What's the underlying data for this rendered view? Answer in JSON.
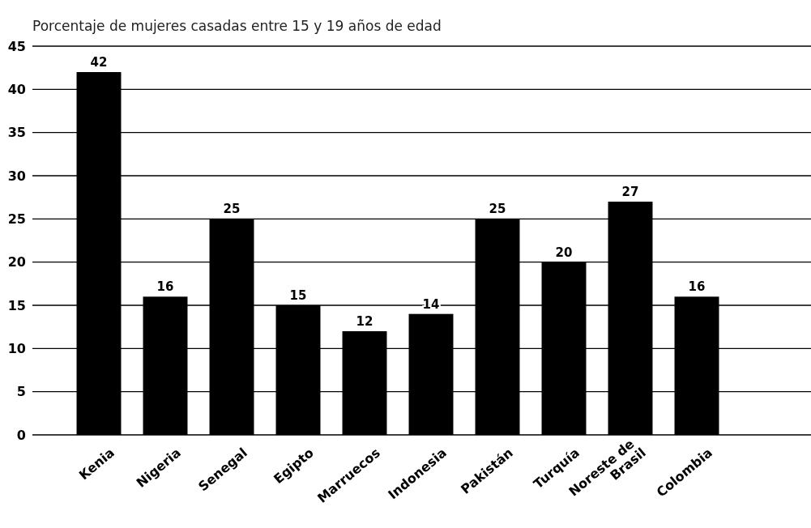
{
  "chart_data": {
    "type": "bar",
    "title": "Porcentaje de mujeres casadas entre 15 y 19 años de edad",
    "categories": [
      "Kenia",
      "Nigeria",
      "Senegal",
      "Egipto",
      "Marruecos",
      "Indonesia",
      "Pakistán",
      "Turquía",
      "Noreste de Brasil",
      "Colombia"
    ],
    "values": [
      42,
      16,
      25,
      15,
      12,
      14,
      25,
      20,
      27,
      16
    ],
    "color": "#000000",
    "ylim": [
      0,
      45
    ],
    "yticks": [
      0,
      5,
      10,
      15,
      20,
      25,
      30,
      35,
      40,
      45
    ],
    "grid": "y",
    "data_labels": true
  }
}
